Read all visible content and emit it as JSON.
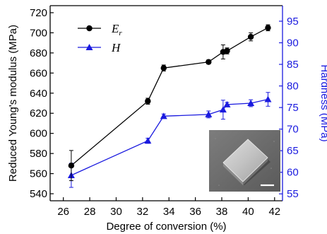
{
  "chart_data": {
    "type": "line",
    "x_label": "Degree of conversion (%)",
    "x_ticks": [
      26,
      28,
      30,
      32,
      34,
      36,
      38,
      40,
      42
    ],
    "xlim": [
      25,
      42.6
    ],
    "left_axis": {
      "label": "Reduced Young's modulus (MPa)",
      "ylim": [
        533,
        727
      ],
      "ticks": [
        540,
        560,
        580,
        600,
        620,
        640,
        660,
        680,
        700,
        720
      ],
      "color": "#000000"
    },
    "right_axis": {
      "label": "Hardness (MPa)",
      "ylim": [
        53.4,
        98.6
      ],
      "ticks": [
        55,
        60,
        65,
        70,
        75,
        80,
        85,
        90,
        95
      ],
      "color": "#1a1adf"
    },
    "series": [
      {
        "name": "E",
        "name_subscript": "r",
        "axis": "left",
        "color": "#000000",
        "marker": "circle",
        "x": [
          26.6,
          32.4,
          33.6,
          37.0,
          38.1,
          38.4,
          40.2,
          41.5
        ],
        "y": [
          568,
          632,
          665,
          671,
          681,
          682,
          696,
          705
        ],
        "err": [
          15,
          3,
          3,
          2,
          7,
          3,
          4,
          3
        ]
      },
      {
        "name": "H",
        "axis": "right",
        "color": "#1a1adf",
        "marker": "triangle",
        "x": [
          26.6,
          32.4,
          33.6,
          37.0,
          38.1,
          38.4,
          40.2,
          41.5
        ],
        "y": [
          59.3,
          67.3,
          73.0,
          73.4,
          74.5,
          75.7,
          76.0,
          76.9
        ],
        "err": [
          2.8,
          0.6,
          0.5,
          0.8,
          2.2,
          0.5,
          0.8,
          1.6
        ]
      }
    ],
    "legend_position": "top-left",
    "inset": "SEM image of a square microstructure"
  }
}
